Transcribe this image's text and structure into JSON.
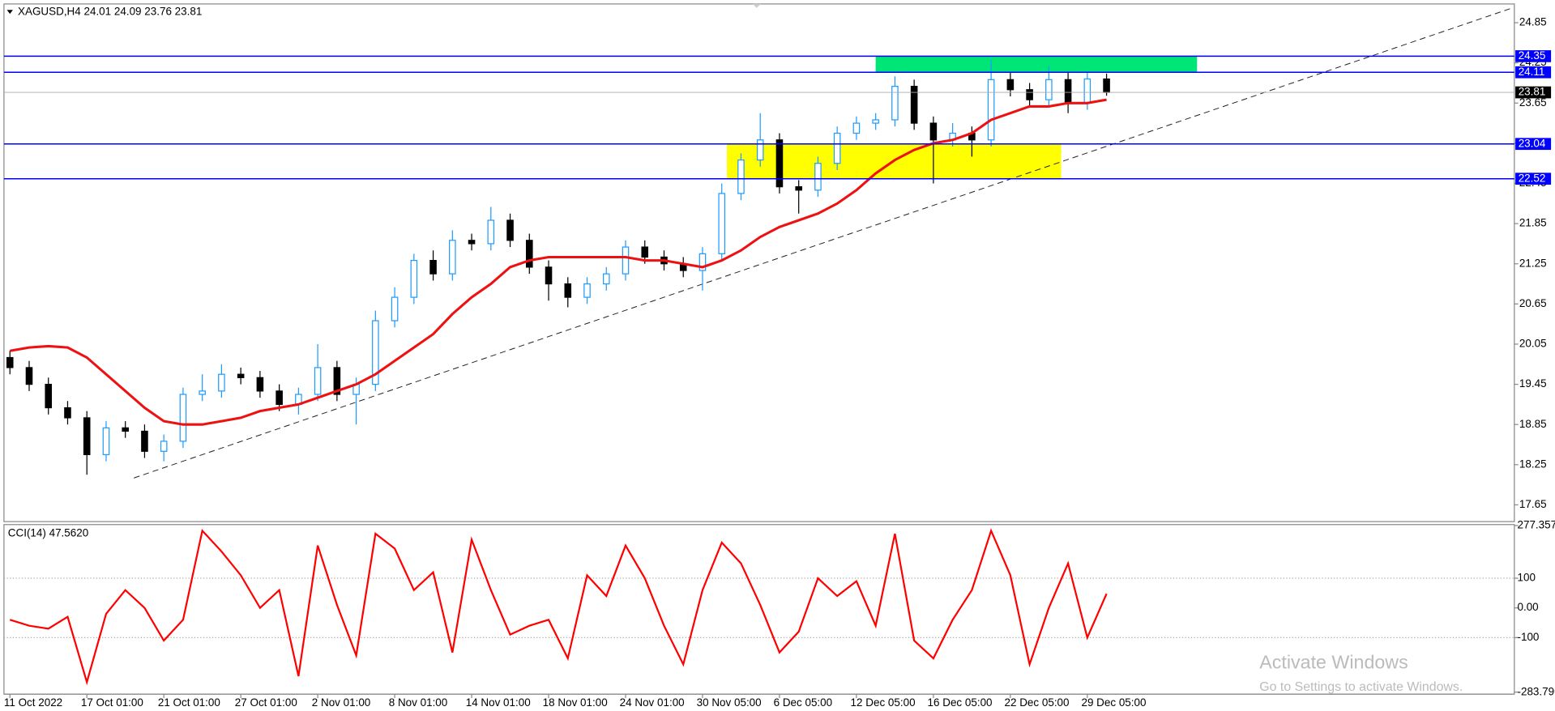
{
  "chart_data": [
    {
      "type": "candlestick",
      "title": "XAGUSD,H4  24.01 24.09 23.76 23.81",
      "categories": [
        "11 Oct 2022",
        null,
        null,
        null,
        "17 Oct 01:00",
        null,
        null,
        null,
        "21 Oct 01:00",
        null,
        null,
        null,
        "27 Oct 01:00",
        null,
        null,
        null,
        "2 Nov 01:00",
        null,
        null,
        null,
        "8 Nov 01:00",
        null,
        null,
        null,
        "14 Nov 01:00",
        null,
        null,
        null,
        "18 Nov 01:00",
        null,
        null,
        null,
        "24 Nov 01:00",
        null,
        null,
        null,
        "30 Nov 05:00",
        null,
        null,
        null,
        "6 Dec 05:00",
        null,
        null,
        null,
        "12 Dec 05:00",
        null,
        null,
        null,
        "16 Dec 05:00",
        null,
        null,
        null,
        "22 Dec 05:00",
        null,
        null,
        null,
        "29 Dec 05:00",
        null
      ],
      "open": [
        19.85,
        19.7,
        19.45,
        19.1,
        18.95,
        18.4,
        18.8,
        18.75,
        18.45,
        18.6,
        19.3,
        19.35,
        19.6,
        19.55,
        19.35,
        19.15,
        19.3,
        19.7,
        19.3,
        19.45,
        20.4,
        20.75,
        21.3,
        21.1,
        21.6,
        21.55,
        21.9,
        21.6,
        21.2,
        20.95,
        20.75,
        20.95,
        21.1,
        21.5,
        21.35,
        21.25,
        21.15,
        21.4,
        22.3,
        22.8,
        23.1,
        22.4,
        22.35,
        22.75,
        23.2,
        23.35,
        23.4,
        23.9,
        23.35,
        23.1,
        23.2,
        23.1,
        24.0,
        23.85,
        23.7,
        24.0,
        23.65,
        24.01
      ],
      "high": [
        19.95,
        19.8,
        19.55,
        19.2,
        19.05,
        18.9,
        18.9,
        18.85,
        18.7,
        19.4,
        19.6,
        19.75,
        19.7,
        19.65,
        19.45,
        19.4,
        20.05,
        19.8,
        19.55,
        20.55,
        20.9,
        21.4,
        21.45,
        21.75,
        21.7,
        22.1,
        22.0,
        21.7,
        21.3,
        21.05,
        21.05,
        21.2,
        21.6,
        21.6,
        21.45,
        21.35,
        21.5,
        22.45,
        22.9,
        23.5,
        23.2,
        22.5,
        22.85,
        23.3,
        23.45,
        23.5,
        24.05,
        24.0,
        23.45,
        23.35,
        23.3,
        24.3,
        24.1,
        23.95,
        24.2,
        24.1,
        24.1,
        24.09
      ],
      "low": [
        19.6,
        19.35,
        19.0,
        18.85,
        18.1,
        18.3,
        18.65,
        18.35,
        18.3,
        18.5,
        19.2,
        19.25,
        19.45,
        19.25,
        19.05,
        19.0,
        19.2,
        19.2,
        18.85,
        19.35,
        20.3,
        20.65,
        21.0,
        21.0,
        21.45,
        21.45,
        21.5,
        21.1,
        20.7,
        20.6,
        20.65,
        20.85,
        21.0,
        21.25,
        21.15,
        21.05,
        20.85,
        21.3,
        22.2,
        22.7,
        22.3,
        22.0,
        22.25,
        22.65,
        23.1,
        23.25,
        23.3,
        23.25,
        22.45,
        23.0,
        22.85,
        23.0,
        23.75,
        23.6,
        23.6,
        23.5,
        23.55,
        23.76
      ],
      "close": [
        19.7,
        19.45,
        19.1,
        18.95,
        18.4,
        18.8,
        18.75,
        18.45,
        18.6,
        19.3,
        19.35,
        19.6,
        19.55,
        19.35,
        19.15,
        19.3,
        19.7,
        19.3,
        19.45,
        20.4,
        20.75,
        21.3,
        21.1,
        21.6,
        21.55,
        21.9,
        21.6,
        21.2,
        20.95,
        20.75,
        20.95,
        21.1,
        21.5,
        21.35,
        21.25,
        21.15,
        21.4,
        22.3,
        22.8,
        23.1,
        22.4,
        22.35,
        22.75,
        23.2,
        23.35,
        23.4,
        23.9,
        23.35,
        23.1,
        23.2,
        23.1,
        24.0,
        23.85,
        23.7,
        24.0,
        23.65,
        24.01,
        23.81
      ],
      "up_color": "#1e9bff",
      "down_color": "#000000",
      "ma": {
        "color": "#ee1111",
        "values": [
          19.95,
          20.0,
          20.02,
          20.0,
          19.85,
          19.6,
          19.35,
          19.1,
          18.9,
          18.85,
          18.85,
          18.9,
          18.95,
          19.05,
          19.1,
          19.15,
          19.25,
          19.35,
          19.45,
          19.6,
          19.8,
          20.0,
          20.2,
          20.5,
          20.75,
          20.95,
          21.2,
          21.3,
          21.35,
          21.35,
          21.35,
          21.35,
          21.35,
          21.3,
          21.3,
          21.25,
          21.2,
          21.3,
          21.45,
          21.65,
          21.8,
          21.9,
          22.0,
          22.15,
          22.35,
          22.6,
          22.8,
          22.95,
          23.05,
          23.1,
          23.2,
          23.4,
          23.5,
          23.6,
          23.6,
          23.65,
          23.65,
          23.7
        ]
      },
      "levels": [
        24.35,
        24.11,
        23.04,
        22.52
      ],
      "level_color": "#0000ff",
      "current_price": 23.81,
      "zones": [
        {
          "color": "#00e676",
          "low": 24.11,
          "high": 24.35
        },
        {
          "color": "#ffff00",
          "low": 22.52,
          "high": 23.04
        }
      ],
      "ylim": [
        17.4,
        25.13
      ],
      "yticks": [
        24.85,
        24.25,
        23.65,
        23.05,
        22.45,
        21.85,
        21.25,
        20.65,
        20.05,
        19.45,
        18.85,
        18.25,
        17.65
      ]
    },
    {
      "type": "line",
      "title": "CCI(14) 47.5620",
      "color": "#ff0000",
      "values": [
        -40,
        -60,
        -70,
        -30,
        -250,
        -20,
        60,
        0,
        -110,
        -40,
        260,
        190,
        110,
        0,
        60,
        -230,
        210,
        10,
        -160,
        250,
        200,
        60,
        120,
        -150,
        230,
        60,
        -90,
        -60,
        -40,
        -170,
        110,
        40,
        210,
        100,
        -60,
        -190,
        60,
        220,
        150,
        10,
        -150,
        -80,
        100,
        40,
        90,
        -60,
        250,
        -110,
        -170,
        -40,
        60,
        260,
        110,
        -190,
        0,
        150,
        -100,
        47.562
      ],
      "ylim": [
        -283.796,
        277.357
      ],
      "yticks": [
        277.357,
        100,
        {
          "value": 0,
          "label": "0.00"
        },
        -100,
        -283.796
      ],
      "levels": [
        100,
        -100
      ]
    }
  ],
  "watermark": {
    "title": "Activate Windows",
    "subtitle": "Go to Settings to activate Windows."
  }
}
